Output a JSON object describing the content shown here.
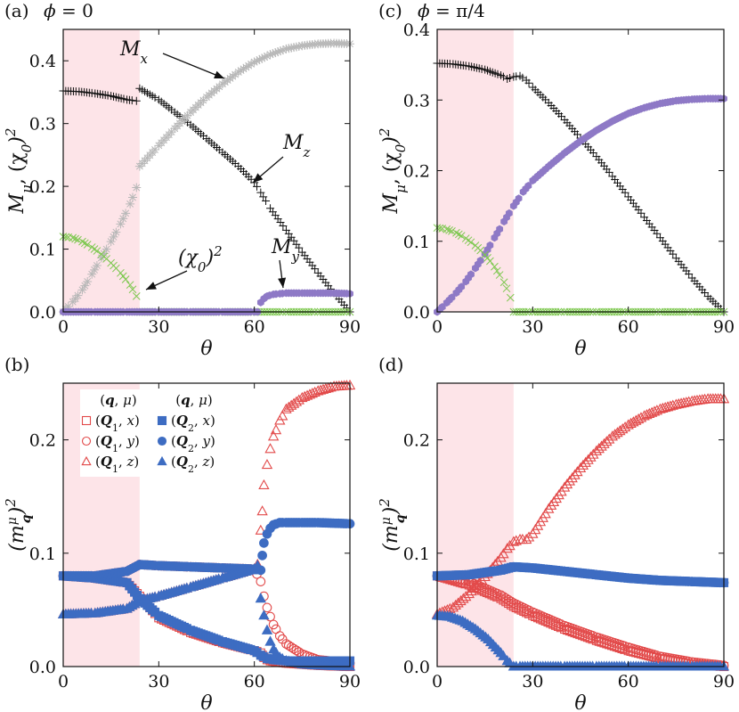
{
  "colors": {
    "shade": "#fde4e8",
    "black": "#111111",
    "gray": "#b8b8b8",
    "green": "#7ec850",
    "purple": "#8e79c6",
    "red": "#e24a4a",
    "blue": "#3d6cc2"
  },
  "chart_data": [
    {
      "panel": "(a)",
      "title": "ϕ = 0",
      "type": "scatter",
      "xlabel": "θ",
      "ylabel": "Mμ, (χ0)²",
      "xlim": [
        0,
        90
      ],
      "ylim": [
        0,
        0.45
      ],
      "xticks": [
        "0",
        "30",
        "60",
        "90"
      ],
      "yticks": [
        "0.0",
        "0.1",
        "0.2",
        "0.3",
        "0.4"
      ],
      "shaded_region": [
        0,
        24
      ],
      "annotations": [
        {
          "text": "Mx",
          "series": "Mx"
        },
        {
          "text": "Mz",
          "series": "Mz"
        },
        {
          "text": "My",
          "series": "My"
        },
        {
          "text": "(χ0)²",
          "series": "chi0sq"
        }
      ],
      "series": [
        {
          "id": "Mz",
          "marker": "plus",
          "color": "black",
          "x": [
            0,
            5,
            10,
            15,
            20,
            23,
            24,
            30,
            35,
            40,
            45,
            50,
            55,
            60,
            62,
            65,
            70,
            75,
            80,
            85,
            90
          ],
          "y": [
            0.352,
            0.351,
            0.348,
            0.344,
            0.338,
            0.336,
            0.356,
            0.338,
            0.318,
            0.298,
            0.276,
            0.254,
            0.232,
            0.206,
            0.19,
            0.165,
            0.13,
            0.095,
            0.062,
            0.03,
            0.0
          ]
        },
        {
          "id": "Mx",
          "marker": "star",
          "color": "gray",
          "x": [
            0,
            3,
            6,
            9,
            12,
            15,
            18,
            21,
            23,
            24,
            30,
            35,
            40,
            45,
            50,
            55,
            60,
            65,
            70,
            75,
            80,
            85,
            90
          ],
          "y": [
            0.0,
            0.016,
            0.035,
            0.06,
            0.086,
            0.112,
            0.14,
            0.172,
            0.198,
            0.232,
            0.265,
            0.292,
            0.318,
            0.342,
            0.363,
            0.382,
            0.398,
            0.41,
            0.419,
            0.424,
            0.427,
            0.428,
            0.427
          ]
        },
        {
          "id": "chi0sq",
          "marker": "x",
          "color": "green",
          "x": [
            0,
            3,
            6,
            9,
            12,
            15,
            18,
            21,
            23,
            24,
            30,
            40,
            50,
            60,
            70,
            80,
            90
          ],
          "y": [
            0.12,
            0.118,
            0.112,
            0.103,
            0.092,
            0.078,
            0.062,
            0.043,
            0.025,
            0.0,
            0.0,
            0.0,
            0.0,
            0.0,
            0.0,
            0.0,
            0.0
          ]
        },
        {
          "id": "My",
          "marker": "hexagon",
          "color": "purple",
          "x": [
            0,
            10,
            20,
            30,
            40,
            50,
            60,
            61,
            62,
            63,
            64,
            66,
            68,
            70,
            75,
            80,
            85,
            90
          ],
          "y": [
            0.0,
            0.0,
            0.0,
            0.0,
            0.0,
            0.0,
            0.0,
            0.0,
            0.015,
            0.021,
            0.025,
            0.028,
            0.029,
            0.03,
            0.03,
            0.03,
            0.03,
            0.029
          ]
        }
      ]
    },
    {
      "panel": "(c)",
      "title": "ϕ = π/4",
      "type": "scatter",
      "xlabel": "θ",
      "ylabel": "Mμ, (χ0)²",
      "xlim": [
        0,
        90
      ],
      "ylim": [
        0,
        0.4
      ],
      "xticks": [
        "0",
        "30",
        "60",
        "90"
      ],
      "yticks": [
        "0.0",
        "0.1",
        "0.2",
        "0.3",
        "0.4"
      ],
      "shaded_region": [
        0,
        24
      ],
      "series": [
        {
          "id": "Mz",
          "marker": "plus",
          "color": "black",
          "x": [
            0,
            5,
            10,
            15,
            20,
            22,
            24,
            26,
            28,
            30,
            35,
            40,
            45,
            50,
            55,
            60,
            65,
            70,
            75,
            80,
            85,
            90
          ],
          "y": [
            0.352,
            0.351,
            0.348,
            0.343,
            0.335,
            0.33,
            0.333,
            0.334,
            0.328,
            0.318,
            0.296,
            0.272,
            0.246,
            0.22,
            0.192,
            0.163,
            0.134,
            0.105,
            0.076,
            0.048,
            0.022,
            0.0
          ]
        },
        {
          "id": "My",
          "marker": "hexagon",
          "color": "purple",
          "x": [
            0,
            3,
            6,
            9,
            12,
            15,
            18,
            21,
            24,
            27,
            30,
            35,
            40,
            45,
            50,
            55,
            60,
            65,
            70,
            75,
            80,
            85,
            90
          ],
          "y": [
            0.0,
            0.013,
            0.027,
            0.043,
            0.062,
            0.082,
            0.105,
            0.128,
            0.15,
            0.17,
            0.186,
            0.206,
            0.225,
            0.242,
            0.257,
            0.27,
            0.281,
            0.289,
            0.295,
            0.299,
            0.301,
            0.302,
            0.302
          ]
        },
        {
          "id": "chi0sq",
          "marker": "x",
          "color": "green",
          "x": [
            0,
            3,
            6,
            9,
            12,
            15,
            18,
            21,
            23,
            24,
            30,
            40,
            50,
            60,
            70,
            80,
            90
          ],
          "y": [
            0.119,
            0.117,
            0.112,
            0.104,
            0.094,
            0.081,
            0.064,
            0.042,
            0.02,
            0.0,
            0.0,
            0.0,
            0.0,
            0.0,
            0.0,
            0.0,
            0.0
          ]
        }
      ]
    },
    {
      "panel": "(b)",
      "type": "scatter",
      "xlabel": "θ",
      "ylabel": "(m_q^μ)²",
      "xlim": [
        0,
        90
      ],
      "ylim": [
        0,
        0.25
      ],
      "xticks": [
        "0",
        "30",
        "60",
        "90"
      ],
      "yticks": [
        "0.0",
        "0.1",
        "0.2"
      ],
      "shaded_region": [
        0,
        24
      ],
      "legend": {
        "placement": "top-left",
        "header1": "(q, μ)",
        "header2": "(q, μ)",
        "entries": [
          {
            "label": "(Q1, x)",
            "marker": "square-open",
            "color": "red"
          },
          {
            "label": "(Q1, y)",
            "marker": "circle-open",
            "color": "red"
          },
          {
            "label": "(Q1, z)",
            "marker": "triangle-open",
            "color": "red"
          },
          {
            "label": "(Q2, x)",
            "marker": "square-filled",
            "color": "blue"
          },
          {
            "label": "(Q2, y)",
            "marker": "circle-filled",
            "color": "blue"
          },
          {
            "label": "(Q2, z)",
            "marker": "triangle-filled",
            "color": "blue"
          }
        ]
      },
      "series": [
        {
          "name": "(Q1, x)",
          "marker": "square-open",
          "color": "red",
          "x": [
            0,
            10,
            20,
            24,
            30,
            40,
            50,
            60,
            62,
            62.5,
            63,
            64,
            65,
            70,
            80,
            90
          ],
          "y": [
            0.08,
            0.078,
            0.074,
            0.062,
            0.043,
            0.03,
            0.021,
            0.014,
            0.012,
            0.01,
            0.008,
            0.006,
            0.005,
            0.003,
            0.001,
            0.0
          ]
        },
        {
          "name": "(Q1, y)",
          "marker": "circle-open",
          "color": "red",
          "x": [
            0,
            10,
            20,
            24,
            30,
            40,
            50,
            60,
            62,
            63,
            64,
            65,
            66,
            68,
            70,
            75,
            80,
            90
          ],
          "y": [
            0.08,
            0.08,
            0.084,
            0.09,
            0.089,
            0.088,
            0.087,
            0.086,
            0.075,
            0.062,
            0.052,
            0.044,
            0.037,
            0.027,
            0.02,
            0.011,
            0.006,
            0.003
          ]
        },
        {
          "name": "(Q1, z)",
          "marker": "triangle-open",
          "color": "red",
          "x": [
            0,
            10,
            20,
            24,
            30,
            40,
            50,
            60,
            61,
            62,
            62.5,
            63,
            64,
            65,
            66,
            68,
            70,
            75,
            80,
            85,
            90
          ],
          "y": [
            0.046,
            0.047,
            0.051,
            0.058,
            0.062,
            0.07,
            0.078,
            0.086,
            0.09,
            0.12,
            0.137,
            0.16,
            0.178,
            0.192,
            0.203,
            0.217,
            0.227,
            0.237,
            0.243,
            0.247,
            0.248
          ]
        },
        {
          "name": "(Q2, x)",
          "marker": "square-filled",
          "color": "blue",
          "x": [
            0,
            10,
            20,
            24,
            30,
            40,
            50,
            60,
            62,
            64,
            66,
            70,
            80,
            90
          ],
          "y": [
            0.08,
            0.078,
            0.074,
            0.06,
            0.045,
            0.032,
            0.022,
            0.014,
            0.01,
            0.007,
            0.006,
            0.005,
            0.005,
            0.005
          ]
        },
        {
          "name": "(Q2, y)",
          "marker": "circle-filled",
          "color": "blue",
          "x": [
            0,
            10,
            20,
            24,
            30,
            40,
            50,
            60,
            62,
            62.5,
            63,
            64,
            65,
            66,
            68,
            70,
            75,
            80,
            90
          ],
          "y": [
            0.08,
            0.08,
            0.084,
            0.09,
            0.089,
            0.088,
            0.087,
            0.086,
            0.085,
            0.098,
            0.109,
            0.117,
            0.122,
            0.125,
            0.127,
            0.127,
            0.127,
            0.127,
            0.126
          ]
        },
        {
          "name": "(Q2, z)",
          "marker": "triangle-filled",
          "color": "blue",
          "x": [
            0,
            10,
            20,
            24,
            30,
            40,
            50,
            60,
            61,
            62,
            63,
            64,
            65,
            66,
            68,
            70,
            75,
            80,
            90
          ],
          "y": [
            0.046,
            0.047,
            0.051,
            0.058,
            0.062,
            0.07,
            0.078,
            0.086,
            0.089,
            0.06,
            0.045,
            0.032,
            0.022,
            0.015,
            0.008,
            0.005,
            0.002,
            0.001,
            0.0
          ]
        }
      ]
    },
    {
      "panel": "(d)",
      "type": "scatter",
      "xlabel": "θ",
      "ylabel": "(m_q^μ)²",
      "xlim": [
        0,
        90
      ],
      "ylim": [
        0,
        0.25
      ],
      "xticks": [
        "0",
        "30",
        "60",
        "90"
      ],
      "yticks": [
        "0.0",
        "0.1",
        "0.2"
      ],
      "shaded_region": [
        0,
        24
      ],
      "series": [
        {
          "name": "(Q1, x)",
          "marker": "square-open",
          "color": "red",
          "x": [
            0,
            10,
            20,
            24,
            30,
            40,
            50,
            60,
            70,
            80,
            90
          ],
          "y": [
            0.08,
            0.072,
            0.06,
            0.053,
            0.045,
            0.033,
            0.023,
            0.014,
            0.007,
            0.002,
            0.0
          ]
        },
        {
          "name": "(Q1, y)",
          "marker": "circle-open",
          "color": "red",
          "x": [
            0,
            10,
            20,
            24,
            30,
            40,
            50,
            60,
            70,
            80,
            90
          ],
          "y": [
            0.08,
            0.075,
            0.063,
            0.056,
            0.048,
            0.036,
            0.026,
            0.017,
            0.009,
            0.004,
            0.001
          ]
        },
        {
          "name": "(Q1, z)",
          "marker": "triangle-open",
          "color": "red",
          "x": [
            0,
            5,
            10,
            15,
            20,
            22,
            24,
            26,
            28,
            30,
            35,
            40,
            45,
            50,
            55,
            60,
            65,
            70,
            75,
            80,
            85,
            90
          ],
          "y": [
            0.046,
            0.052,
            0.064,
            0.079,
            0.096,
            0.104,
            0.11,
            0.112,
            0.112,
            0.117,
            0.139,
            0.158,
            0.175,
            0.19,
            0.203,
            0.213,
            0.221,
            0.227,
            0.231,
            0.234,
            0.236,
            0.236
          ]
        },
        {
          "name": "(Q2, x)",
          "marker": "square-filled",
          "color": "blue",
          "x": [
            0,
            10,
            20,
            24,
            30,
            40,
            50,
            60,
            70,
            80,
            90
          ],
          "y": [
            0.08,
            0.081,
            0.085,
            0.088,
            0.087,
            0.084,
            0.081,
            0.078,
            0.076,
            0.075,
            0.074
          ]
        },
        {
          "name": "(Q2, y)",
          "marker": "circle-filled",
          "color": "blue",
          "x": [
            0,
            10,
            20,
            24,
            30,
            40,
            50,
            60,
            70,
            80,
            90
          ],
          "y": [
            0.08,
            0.081,
            0.085,
            0.088,
            0.087,
            0.084,
            0.081,
            0.078,
            0.076,
            0.075,
            0.074
          ]
        },
        {
          "name": "(Q2, z)",
          "marker": "triangle-filled",
          "color": "blue",
          "x": [
            0,
            4,
            8,
            12,
            16,
            20,
            22,
            24,
            26,
            30,
            40,
            50,
            60,
            70,
            80,
            90
          ],
          "y": [
            0.045,
            0.044,
            0.04,
            0.033,
            0.024,
            0.012,
            0.005,
            0.0,
            0.0,
            0.0,
            0.0,
            0.0,
            0.0,
            0.0,
            0.0,
            0.0
          ]
        }
      ]
    }
  ]
}
